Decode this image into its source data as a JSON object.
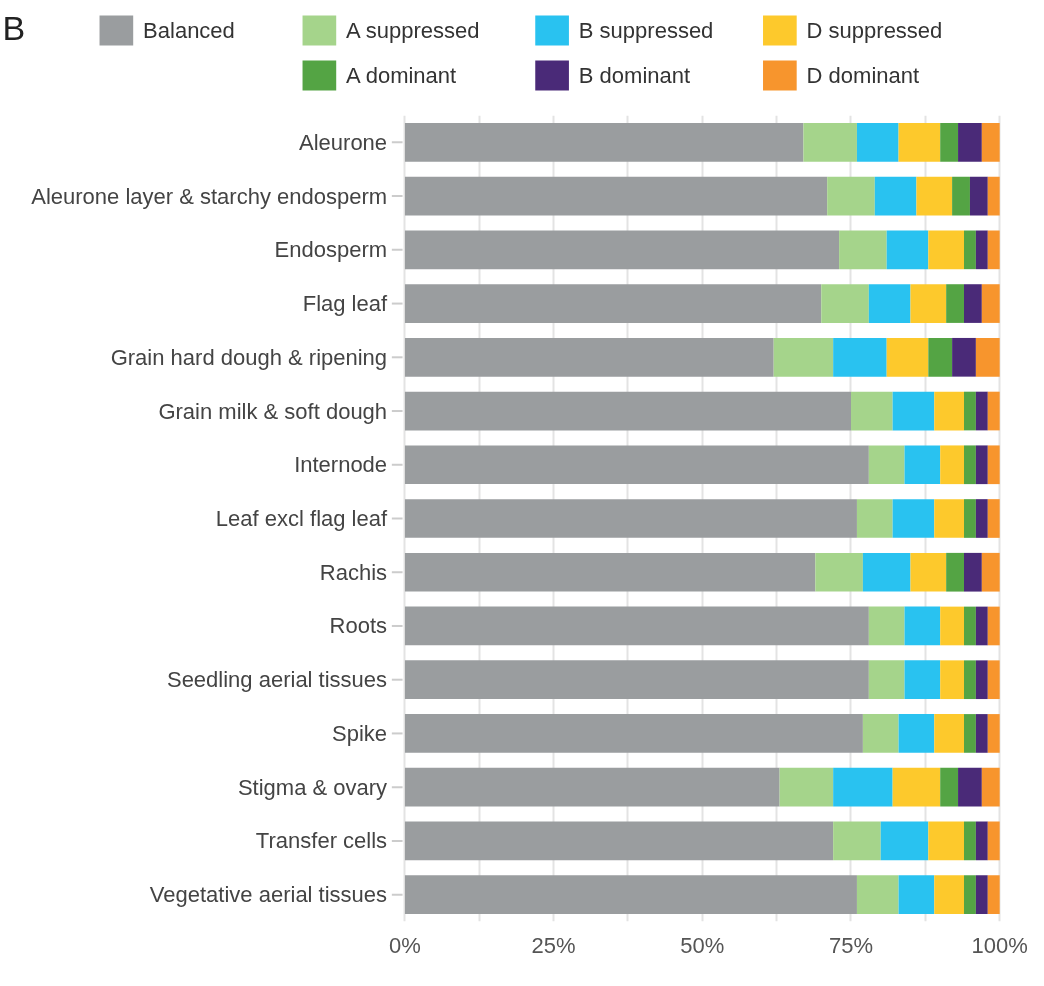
{
  "chart_data": {
    "type": "bar",
    "orientation": "horizontal",
    "stacked": true,
    "title": "B",
    "categories": [
      "Aleurone",
      "Aleurone layer & starchy endosperm",
      "Endosperm",
      "Flag leaf",
      "Grain hard dough & ripening",
      "Grain milk & soft dough",
      "Internode",
      "Leaf excl flag leaf",
      "Rachis",
      "Roots",
      "Seedling aerial tissues",
      "Spike",
      "Stigma & ovary",
      "Transfer cells",
      "Vegetative aerial tissues"
    ],
    "series": [
      {
        "name": "Balanced",
        "color": "#9a9d9f",
        "values": [
          67,
          71,
          73,
          70,
          62,
          75,
          78,
          76,
          69,
          78,
          78,
          77,
          63,
          72,
          76
        ]
      },
      {
        "name": "A suppressed",
        "color": "#a5d48b",
        "values": [
          9,
          8,
          8,
          8,
          10,
          7,
          6,
          6,
          8,
          6,
          6,
          6,
          9,
          8,
          7
        ]
      },
      {
        "name": "B suppressed",
        "color": "#29c2f0",
        "values": [
          7,
          7,
          7,
          7,
          9,
          7,
          6,
          7,
          8,
          6,
          6,
          6,
          10,
          8,
          6
        ]
      },
      {
        "name": "D suppressed",
        "color": "#fdc92c",
        "values": [
          7,
          6,
          6,
          6,
          7,
          5,
          4,
          5,
          6,
          4,
          4,
          5,
          8,
          6,
          5
        ]
      },
      {
        "name": "A dominant",
        "color": "#54a444",
        "values": [
          3,
          3,
          2,
          3,
          4,
          2,
          2,
          2,
          3,
          2,
          2,
          2,
          3,
          2,
          2
        ]
      },
      {
        "name": "B dominant",
        "color": "#4a2a78",
        "values": [
          4,
          3,
          2,
          3,
          4,
          2,
          2,
          2,
          3,
          2,
          2,
          2,
          4,
          2,
          2
        ]
      },
      {
        "name": "D dominant",
        "color": "#f7952d",
        "values": [
          3,
          2,
          2,
          3,
          4,
          2,
          2,
          2,
          3,
          2,
          2,
          2,
          3,
          2,
          2
        ]
      }
    ],
    "xlim": [
      0,
      100
    ],
    "xticks": [
      {
        "value": 0,
        "label": "0%"
      },
      {
        "value": 12.5,
        "label": null
      },
      {
        "value": 25,
        "label": "25%"
      },
      {
        "value": 37.5,
        "label": null
      },
      {
        "value": 50,
        "label": "50%"
      },
      {
        "value": 62.5,
        "label": null
      },
      {
        "value": 75,
        "label": "75%"
      },
      {
        "value": 87.5,
        "label": null
      },
      {
        "value": 100,
        "label": "100%"
      }
    ],
    "grid": "x",
    "legend": "top"
  }
}
